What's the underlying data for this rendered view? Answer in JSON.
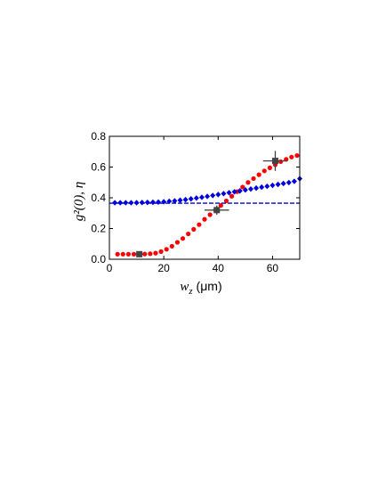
{
  "chart_data": {
    "type": "scatter",
    "xlabel": "w_z (μm)",
    "ylabel": "g²(0), η",
    "xlim": [
      0,
      70
    ],
    "ylim": [
      0,
      0.8
    ],
    "xticks": [
      0,
      20,
      40,
      60
    ],
    "yticks": [
      0.0,
      0.2,
      0.4,
      0.6,
      0.8
    ],
    "xtick_labels": [
      "0",
      "20",
      "40",
      "60"
    ],
    "ytick_labels": [
      "0.0",
      "0.2",
      "0.4",
      "0.6",
      "0.8"
    ],
    "grid": false,
    "colors": {
      "red": "#ff0000",
      "blue": "#0000dd",
      "gray": "#444444"
    },
    "series": [
      {
        "marker": "circle",
        "color": "#ff0000",
        "x": [
          3,
          5,
          7,
          9,
          11,
          13,
          15,
          17,
          19,
          21,
          23,
          25,
          27,
          29,
          31,
          33,
          35,
          37,
          39,
          41,
          43,
          45,
          47,
          49,
          51,
          53,
          55,
          57,
          59,
          61,
          63,
          65,
          67,
          69
        ],
        "y": [
          0.033,
          0.033,
          0.033,
          0.033,
          0.033,
          0.034,
          0.036,
          0.04,
          0.05,
          0.065,
          0.085,
          0.11,
          0.135,
          0.165,
          0.195,
          0.225,
          0.26,
          0.29,
          0.32,
          0.35,
          0.38,
          0.41,
          0.44,
          0.47,
          0.5,
          0.525,
          0.55,
          0.575,
          0.595,
          0.615,
          0.635,
          0.65,
          0.665,
          0.675
        ]
      },
      {
        "marker": "diamond",
        "color": "#0000dd",
        "x": [
          2,
          4,
          6,
          8,
          10,
          12,
          14,
          16,
          18,
          20,
          22,
          24,
          26,
          28,
          30,
          32,
          34,
          36,
          38,
          40,
          42,
          44,
          46,
          48,
          50,
          52,
          54,
          56,
          58,
          60,
          62,
          64,
          66,
          68,
          70
        ],
        "y": [
          0.368,
          0.368,
          0.368,
          0.368,
          0.368,
          0.369,
          0.37,
          0.371,
          0.372,
          0.374,
          0.377,
          0.38,
          0.384,
          0.388,
          0.393,
          0.398,
          0.403,
          0.409,
          0.415,
          0.421,
          0.427,
          0.433,
          0.439,
          0.445,
          0.451,
          0.457,
          0.463,
          0.469,
          0.475,
          0.481,
          0.487,
          0.493,
          0.499,
          0.507,
          0.524
        ]
      },
      {
        "marker": "dashed-line",
        "color": "#0000dd",
        "x": [
          0,
          70
        ],
        "y": [
          0.365,
          0.365
        ]
      },
      {
        "marker": "square-errorbar",
        "color": "#444444",
        "x": [
          11,
          39.5,
          61
        ],
        "y": [
          0.033,
          0.32,
          0.64
        ],
        "xerr": [
          1.5,
          4.5,
          4.5
        ],
        "yerr": [
          0.01,
          0.03,
          0.065
        ]
      }
    ]
  }
}
